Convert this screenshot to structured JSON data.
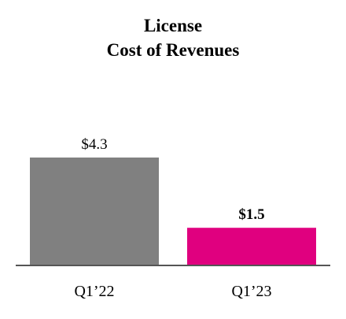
{
  "chart_data": {
    "type": "bar",
    "title": "License",
    "subtitle": "Cost of Revenues",
    "categories": [
      "Q1’22",
      "Q1’23"
    ],
    "values": [
      4.3,
      1.5
    ],
    "value_labels": [
      "$4.3",
      "$1.5"
    ],
    "colors": [
      "#808080",
      "#e0007f"
    ]
  }
}
